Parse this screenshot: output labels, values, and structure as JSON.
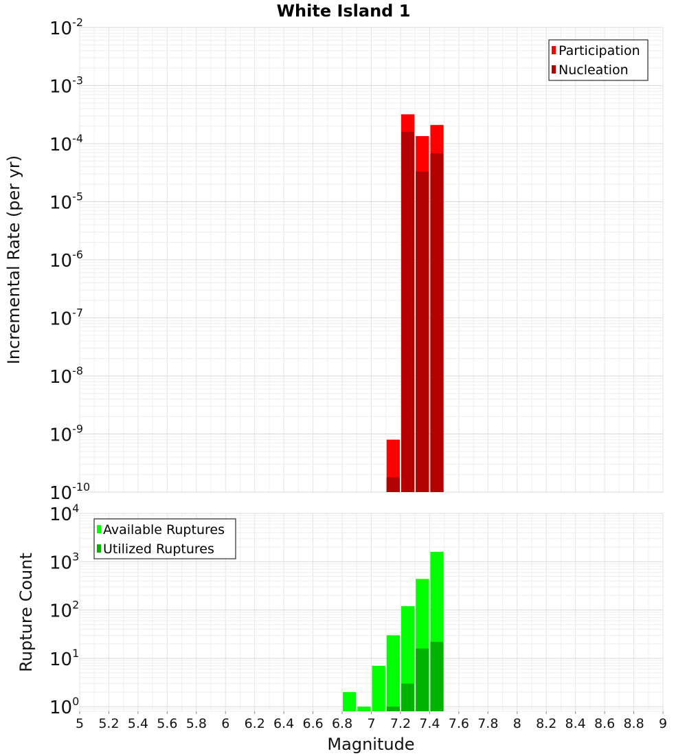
{
  "chart_data": [
    {
      "type": "bar",
      "title": "White Island 1",
      "xlabel": "Magnitude",
      "ylabel": "Incremental Rate (per yr)",
      "yscale": "log",
      "xlim": [
        5,
        9
      ],
      "ylim": [
        1e-10,
        0.01
      ],
      "yticks": [
        {
          "base": "10",
          "exp": "-10"
        },
        {
          "base": "10",
          "exp": "-9"
        },
        {
          "base": "10",
          "exp": "-8"
        },
        {
          "base": "10",
          "exp": "-7"
        },
        {
          "base": "10",
          "exp": "-6"
        },
        {
          "base": "10",
          "exp": "-5"
        },
        {
          "base": "10",
          "exp": "-4"
        },
        {
          "base": "10",
          "exp": "-3"
        },
        {
          "base": "10",
          "exp": "-2"
        }
      ],
      "bin_width": 0.1,
      "legend": {
        "position": "top-right",
        "entries": [
          "Participation",
          "Nucleation"
        ]
      },
      "series": [
        {
          "name": "Participation",
          "color": "#ff0000",
          "x": [
            7.15,
            7.25,
            7.35,
            7.45
          ],
          "values": [
            8e-10,
            0.00032,
            0.000135,
            0.00021
          ]
        },
        {
          "name": "Nucleation",
          "color": "#b30000",
          "x": [
            7.15,
            7.25,
            7.35,
            7.45
          ],
          "values": [
            1.8e-10,
            0.00016,
            3.3e-05,
            6.8e-05
          ]
        }
      ]
    },
    {
      "type": "bar",
      "xlabel": "Magnitude",
      "ylabel": "Rupture Count",
      "yscale": "log",
      "xlim": [
        5,
        9
      ],
      "ylim": [
        0.8,
        10000.0
      ],
      "xticks": [
        "5",
        "5.2",
        "5.4",
        "5.6",
        "5.8",
        "6",
        "6.2",
        "6.4",
        "6.6",
        "6.8",
        "7",
        "7.2",
        "7.4",
        "7.6",
        "7.8",
        "8",
        "8.2",
        "8.4",
        "8.6",
        "8.8",
        "9"
      ],
      "yticks": [
        {
          "base": "10",
          "exp": "0"
        },
        {
          "base": "10",
          "exp": "1"
        },
        {
          "base": "10",
          "exp": "2"
        },
        {
          "base": "10",
          "exp": "3"
        },
        {
          "base": "10",
          "exp": "4"
        }
      ],
      "bin_width": 0.1,
      "legend": {
        "position": "top-left",
        "entries": [
          "Available Ruptures",
          "Utilized Ruptures"
        ]
      },
      "series": [
        {
          "name": "Available Ruptures",
          "color": "#00ff00",
          "x": [
            6.85,
            6.95,
            7.05,
            7.15,
            7.25,
            7.35,
            7.45
          ],
          "values": [
            2,
            1,
            7,
            30,
            120,
            440,
            1600
          ]
        },
        {
          "name": "Utilized Ruptures",
          "color": "#00b300",
          "x": [
            7.15,
            7.25,
            7.35,
            7.45
          ],
          "values": [
            1,
            3,
            16,
            22
          ]
        }
      ]
    }
  ]
}
